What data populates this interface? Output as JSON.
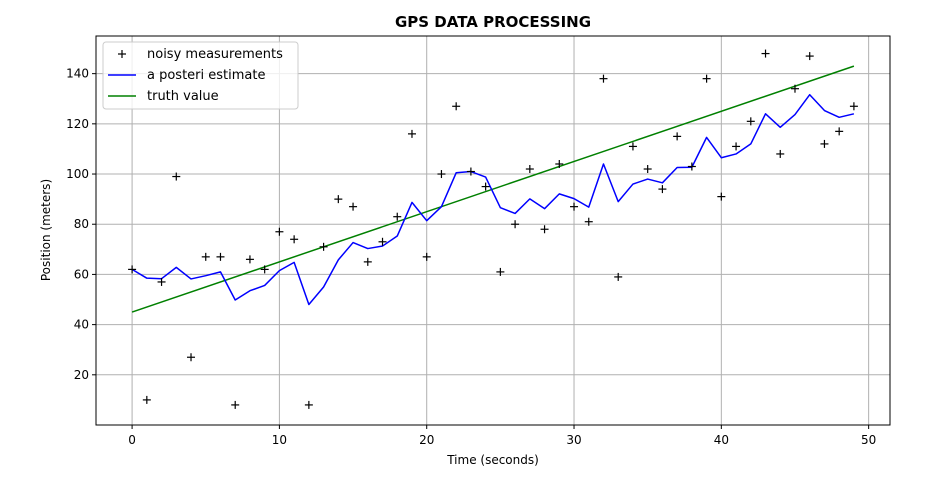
{
  "chart_data": {
    "type": "line",
    "title": "GPS DATA PROCESSING",
    "xlabel": "Time (seconds)",
    "ylabel": "Position (meters)",
    "xlim": [
      -2.45,
      51.45
    ],
    "ylim": [
      0,
      155
    ],
    "xticks": [
      0,
      10,
      20,
      30,
      40,
      50
    ],
    "yticks": [
      20,
      40,
      60,
      80,
      100,
      120,
      140
    ],
    "grid": true,
    "legend_position": "top-left",
    "series": [
      {
        "name": "noisy measurements",
        "style": "marker",
        "marker": "+",
        "color": "#000000",
        "x": [
          0,
          1,
          2,
          3,
          4,
          5,
          6,
          7,
          8,
          9,
          10,
          11,
          12,
          13,
          14,
          15,
          16,
          17,
          18,
          19,
          20,
          21,
          22,
          23,
          24,
          25,
          26,
          27,
          28,
          29,
          30,
          31,
          32,
          33,
          34,
          35,
          36,
          37,
          38,
          39,
          40,
          41,
          42,
          43,
          44,
          45,
          46,
          47,
          48,
          49
        ],
        "y": [
          62,
          10,
          57,
          99,
          27,
          67,
          67,
          8,
          66,
          62,
          77,
          74,
          8,
          71,
          90,
          87,
          65,
          73,
          83,
          116,
          67,
          100,
          127,
          101,
          95,
          61,
          80,
          102,
          78,
          104,
          87,
          81,
          138,
          59,
          111,
          102,
          94,
          115,
          103,
          138,
          91,
          111,
          121,
          148,
          108,
          134,
          147,
          112,
          117,
          127
        ]
      },
      {
        "name": "a posteri estimate",
        "style": "line",
        "color": "#0000ff",
        "x": [
          0,
          1,
          2,
          3,
          4,
          5,
          6,
          7,
          8,
          9,
          10,
          11,
          12,
          13,
          14,
          15,
          16,
          17,
          18,
          19,
          20,
          21,
          22,
          23,
          24,
          25,
          26,
          27,
          28,
          29,
          30,
          31,
          32,
          33,
          34,
          35,
          36,
          37,
          38,
          39,
          40,
          41,
          42,
          43,
          44,
          45,
          46,
          47,
          48,
          49
        ],
        "y": [
          62,
          58.5,
          58.3,
          62.8,
          58.2,
          59.5,
          61,
          49.8,
          53.5,
          55.6,
          61.5,
          64.8,
          48,
          55,
          65.8,
          72.7,
          70.3,
          71.3,
          75.3,
          88.7,
          81.4,
          87,
          100.5,
          101,
          98.8,
          86.6,
          84.3,
          90.1,
          86.2,
          92.1,
          90.2,
          86.8,
          104,
          89,
          96,
          98,
          96.5,
          102.6,
          102.7,
          114.6,
          106.5,
          108,
          112,
          124,
          118.6,
          123.7,
          131.6,
          125.3,
          122.6,
          124
        ]
      },
      {
        "name": "truth value",
        "style": "line",
        "color": "#008000",
        "x": [
          0,
          49
        ],
        "y": [
          45,
          143
        ]
      }
    ]
  }
}
